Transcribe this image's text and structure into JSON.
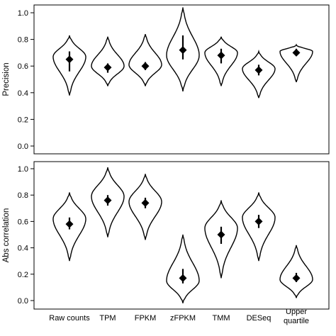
{
  "chart_data": [
    {
      "type": "violin",
      "title": "",
      "xlabel": "",
      "ylabel": "Precision",
      "ylim": [
        0.0,
        1.0
      ],
      "yticks": [
        "0.0",
        "0.2",
        "0.4",
        "0.6",
        "0.8",
        "1.0"
      ],
      "grid": false,
      "series": [
        {
          "name": "Raw counts",
          "median": 0.65,
          "q1": 0.56,
          "q3": 0.71,
          "min": 0.38,
          "max": 0.83,
          "mode": 0.67
        },
        {
          "name": "TPM",
          "median": 0.59,
          "q1": 0.55,
          "q3": 0.62,
          "min": 0.45,
          "max": 0.82,
          "mode": 0.6
        },
        {
          "name": "FPKM",
          "median": 0.6,
          "q1": 0.57,
          "q3": 0.63,
          "min": 0.45,
          "max": 0.84,
          "mode": 0.61
        },
        {
          "name": "zFPKM",
          "median": 0.72,
          "q1": 0.65,
          "q3": 0.83,
          "min": 0.41,
          "max": 1.04,
          "mode": 0.68
        },
        {
          "name": "TMM",
          "median": 0.68,
          "q1": 0.62,
          "q3": 0.73,
          "min": 0.45,
          "max": 0.82,
          "mode": 0.7
        },
        {
          "name": "DESeq",
          "median": 0.57,
          "q1": 0.53,
          "q3": 0.61,
          "min": 0.36,
          "max": 0.71,
          "mode": 0.58
        },
        {
          "name": "Upper quartile",
          "median": 0.7,
          "q1": 0.68,
          "q3": 0.73,
          "min": 0.48,
          "max": 0.76,
          "mode": 0.71
        }
      ]
    },
    {
      "type": "violin",
      "title": "",
      "xlabel": "",
      "ylabel": "Abs correlation",
      "ylim": [
        0.0,
        1.0
      ],
      "yticks": [
        "0.0",
        "0.2",
        "0.4",
        "0.6",
        "0.8",
        "1.0"
      ],
      "grid": false,
      "series": [
        {
          "name": "Raw counts",
          "median": 0.58,
          "q1": 0.54,
          "q3": 0.63,
          "min": 0.3,
          "max": 0.82,
          "mode": 0.62
        },
        {
          "name": "TPM",
          "median": 0.76,
          "q1": 0.72,
          "q3": 0.8,
          "min": 0.48,
          "max": 1.01,
          "mode": 0.79
        },
        {
          "name": "FPKM",
          "median": 0.74,
          "q1": 0.7,
          "q3": 0.78,
          "min": 0.46,
          "max": 0.96,
          "mode": 0.75
        },
        {
          "name": "zFPKM",
          "median": 0.17,
          "q1": 0.13,
          "q3": 0.24,
          "min": -0.02,
          "max": 0.5,
          "mode": 0.15
        },
        {
          "name": "TMM",
          "median": 0.5,
          "q1": 0.43,
          "q3": 0.56,
          "min": 0.17,
          "max": 0.76,
          "mode": 0.55
        },
        {
          "name": "DESeq",
          "median": 0.6,
          "q1": 0.55,
          "q3": 0.65,
          "min": 0.3,
          "max": 0.82,
          "mode": 0.63
        },
        {
          "name": "Upper quartile",
          "median": 0.17,
          "q1": 0.14,
          "q3": 0.21,
          "min": 0.02,
          "max": 0.42,
          "mode": 0.16
        }
      ]
    }
  ],
  "x_labels": [
    {
      "line1": "Raw counts",
      "line2": ""
    },
    {
      "line1": "TPM",
      "line2": ""
    },
    {
      "line1": "FPKM",
      "line2": ""
    },
    {
      "line1": "zFPKM",
      "line2": ""
    },
    {
      "line1": "TMM",
      "line2": ""
    },
    {
      "line1": "DESeq",
      "line2": ""
    },
    {
      "line1": "Upper",
      "line2": "quartile"
    }
  ],
  "colors": {
    "stroke": "#000000",
    "background": "#ffffff"
  }
}
